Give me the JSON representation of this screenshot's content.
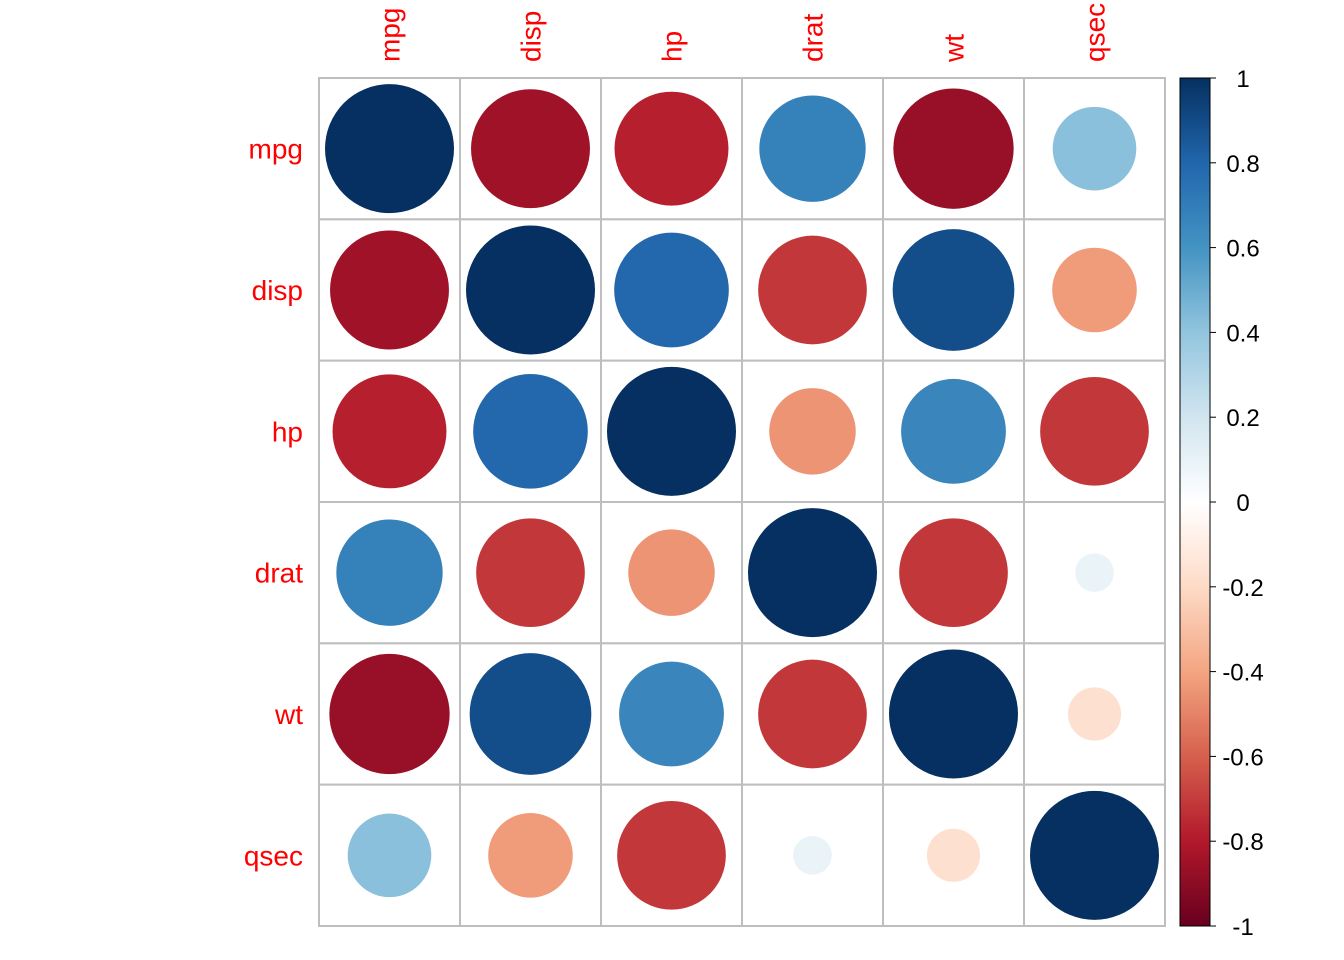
{
  "chart_data": {
    "type": "heatmap",
    "method": "circle",
    "variables": [
      "mpg",
      "disp",
      "hp",
      "drat",
      "wt",
      "qsec"
    ],
    "matrix": [
      [
        1.0,
        -0.85,
        -0.78,
        0.68,
        -0.87,
        0.42
      ],
      [
        -0.85,
        1.0,
        0.79,
        -0.71,
        0.89,
        -0.43
      ],
      [
        -0.78,
        0.79,
        1.0,
        -0.45,
        0.66,
        -0.71
      ],
      [
        0.68,
        -0.71,
        -0.45,
        1.0,
        -0.71,
        0.09
      ],
      [
        -0.87,
        0.89,
        0.66,
        -0.71,
        1.0,
        -0.17
      ],
      [
        0.42,
        -0.43,
        -0.71,
        0.09,
        -0.17,
        1.0
      ]
    ],
    "colorbar": {
      "range": [
        -1,
        1
      ],
      "ticks": [
        "1",
        "0.8",
        "0.6",
        "0.4",
        "0.2",
        "0",
        "-0.2",
        "-0.4",
        "-0.6",
        "-0.8",
        "-1"
      ],
      "colors": [
        "#67001F",
        "#B2182B",
        "#D6604D",
        "#F4A582",
        "#FDDBC7",
        "#FFFFFF",
        "#D1E5F0",
        "#92C5DE",
        "#4393C3",
        "#2166AC",
        "#053061"
      ]
    },
    "label_color": "#FF0000",
    "grid_color": "#BEBEBE"
  }
}
